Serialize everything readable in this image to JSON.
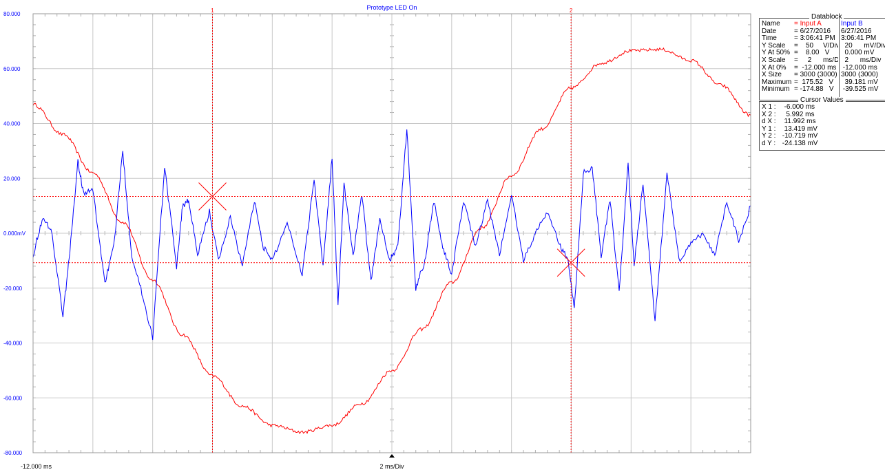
{
  "chart_data": {
    "type": "line",
    "title": "Prototype LED On",
    "xlabel": "2 ms/Div",
    "x_start_label": "-12.000 ms",
    "xlim": [
      -12,
      12
    ],
    "ylim": [
      -80,
      80
    ],
    "y_unit": "mV",
    "y_ticks": [
      {
        "value": 80,
        "label": "80.000"
      },
      {
        "value": 60,
        "label": "60.000"
      },
      {
        "value": 40,
        "label": "40.000"
      },
      {
        "value": 20,
        "label": "20.000"
      },
      {
        "value": 0,
        "label": "0.000"
      },
      {
        "value": -20,
        "label": "-20.000"
      },
      {
        "value": -40,
        "label": "-40.000"
      },
      {
        "value": -60,
        "label": "-60.000"
      },
      {
        "value": -80,
        "label": "-80.000"
      }
    ],
    "grid": true,
    "cursors": {
      "x1": {
        "label": "1",
        "value": -6.0
      },
      "x2": {
        "label": "2",
        "value": 5.992
      },
      "y1": 13.419,
      "y2": -10.719
    },
    "series": [
      {
        "name": "Input A",
        "color": "#ff0000",
        "x": [
          -12,
          -11,
          -10,
          -9,
          -8,
          -7,
          -6,
          -5,
          -4,
          -3,
          -2,
          -1,
          0,
          1,
          2,
          3,
          4,
          5,
          6,
          7,
          8,
          9,
          10,
          11,
          12
        ],
        "y": [
          47,
          36,
          22,
          4,
          -17,
          -37,
          -52,
          -63,
          -70,
          -72.5,
          -70,
          -62,
          -50,
          -35,
          -18,
          2,
          21,
          38,
          53,
          62,
          66.5,
          67,
          63,
          54,
          43
        ]
      },
      {
        "name": "Input B",
        "color": "#0000ff",
        "x": [
          -12,
          -11.7,
          -11.4,
          -11,
          -10.8,
          -10.5,
          -10.3,
          -10,
          -9.6,
          -9.3,
          -9,
          -8.7,
          -8.4,
          -8,
          -7.6,
          -7.2,
          -7,
          -6.8,
          -6.5,
          -6.1,
          -5.8,
          -5.4,
          -5,
          -4.6,
          -4.3,
          -4,
          -3.5,
          -3,
          -2.6,
          -2.3,
          -2,
          -1.8,
          -1.6,
          -1.3,
          -1,
          -0.7,
          -0.4,
          -0.1,
          0.2,
          0.5,
          0.8,
          1.1,
          1.4,
          1.7,
          2,
          2.4,
          2.8,
          3.2,
          3.6,
          4,
          4.4,
          4.8,
          5.2,
          5.6,
          5.9,
          6.1,
          6.4,
          6.7,
          7,
          7.3,
          7.6,
          7.9,
          8.1,
          8.4,
          8.8,
          9.2,
          9.6,
          10,
          10.4,
          10.8,
          11.2,
          11.6,
          12
        ],
        "y": [
          -8,
          5,
          2,
          -30,
          -10,
          26,
          14,
          16,
          -18,
          -5,
          30,
          -8,
          -20,
          -38,
          24,
          -12,
          10,
          12,
          -8,
          8,
          -10,
          6,
          -12,
          12,
          -5,
          -10,
          4,
          -15,
          20,
          -12,
          28,
          -26,
          18,
          -8,
          14,
          -18,
          6,
          -10,
          -5,
          38,
          -20,
          -10,
          12,
          -5,
          -15,
          12,
          -5,
          12,
          -8,
          14,
          -10,
          0,
          8,
          -4,
          -10,
          -28,
          22,
          24,
          -8,
          12,
          -22,
          26,
          -12,
          18,
          -32,
          22,
          -10,
          -4,
          0,
          -8,
          12,
          -3,
          10
        ]
      }
    ]
  },
  "datablock": {
    "title": "Datablock",
    "rows": [
      {
        "label": "Name",
        "a": "= Input A",
        "b": "Input B"
      },
      {
        "label": "Date",
        "a": "= 6/27/2016",
        "b": "6/27/2016"
      },
      {
        "label": "Time",
        "a": "= 3:06:41 PM",
        "b": "3:06:41 PM"
      },
      {
        "label": "Y Scale",
        "a": "=    50     V/Div",
        "b": "  20      mV/Div"
      },
      {
        "label": "Y At 50%",
        "a": "=    8.00   V",
        "b": "  0.000 mV"
      },
      {
        "label": "X Scale",
        "a": "=     2      ms/Div",
        "b": "  2      ms/Div"
      },
      {
        "label": "X At 0%",
        "a": "=  -12.000 ms",
        "b": " -12.000 ms"
      },
      {
        "label": "X Size",
        "a": "= 3000 (3000)",
        "b": "3000 (3000)"
      },
      {
        "label": "Maximum",
        "a": "=  175.52   V",
        "b": "  39.181 mV"
      },
      {
        "label": "Minimum",
        "a": "= -174.88   V",
        "b": " -39.525 mV"
      }
    ]
  },
  "cursor_values": {
    "title": "Cursor Values",
    "rows": [
      {
        "label": "X 1 :",
        "value": "  -6.000 ms"
      },
      {
        "label": "X 2 :",
        "value": "   5.992 ms"
      },
      {
        "label": "d X :",
        "value": "  11.992 ms"
      },
      {
        "label": "Y 1 :",
        "value": "  13.419 mV"
      },
      {
        "label": "Y 2 :",
        "value": " -10.719 mV"
      },
      {
        "label": "d Y :",
        "value": " -24.138 mV"
      }
    ]
  }
}
